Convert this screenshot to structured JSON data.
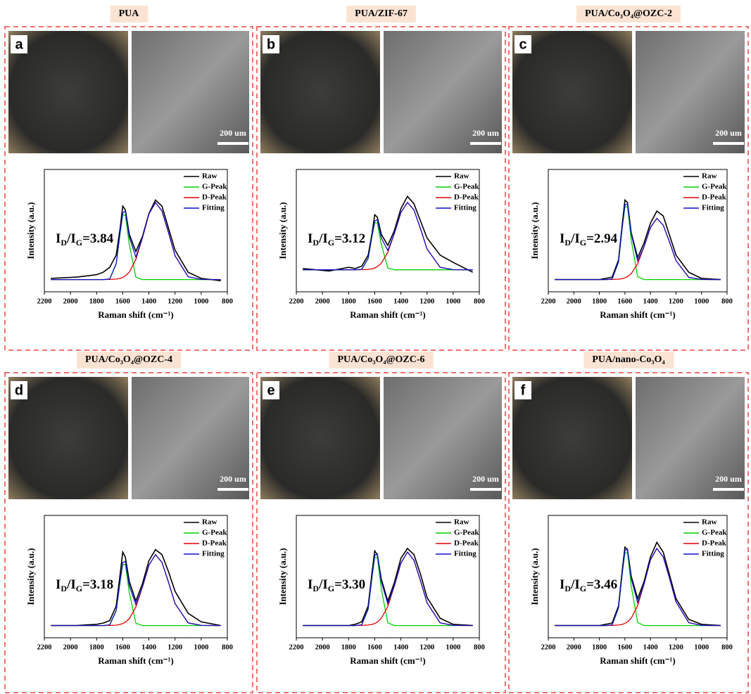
{
  "chart_data": [
    {
      "type": "line",
      "panel": "a",
      "title": "PUA",
      "scale_bar": "200 um",
      "x_label": "Raman shift (cm⁻¹)",
      "y_label": "Intensity (a.u.)",
      "annotation": [
        "I",
        "D",
        "/I",
        "G",
        "=3.84"
      ],
      "xlim": [
        2200,
        800
      ],
      "xticks": [
        2200,
        2000,
        1800,
        1600,
        1400,
        1200,
        1000,
        800
      ],
      "ylim": [
        0,
        100
      ],
      "x": [
        2150,
        1950,
        1800,
        1750,
        1700,
        1650,
        1620,
        1600,
        1580,
        1550,
        1500,
        1450,
        1400,
        1350,
        1300,
        1250,
        1200,
        1100,
        1000,
        850
      ],
      "series": [
        {
          "name": "Raw",
          "color": "#000000",
          "values": [
            11,
            12,
            14,
            16,
            20,
            30,
            52,
            70,
            67,
            47,
            33,
            45,
            64,
            75,
            70,
            52,
            34,
            16,
            11,
            9
          ]
        },
        {
          "name": "G-Peak",
          "color": "#00d000",
          "values": [
            10,
            10,
            10,
            10,
            10.4,
            22.7,
            48,
            62.8,
            62.8,
            38.6,
            12,
            10,
            10,
            10,
            10,
            10,
            10,
            10,
            10,
            10
          ]
        },
        {
          "name": "D-Peak",
          "color": "#e00000",
          "values": [
            10,
            10,
            10,
            10,
            10.1,
            10.4,
            10.9,
            11.7,
            13,
            16.1,
            26.4,
            44,
            63.6,
            73,
            66.1,
            48.4,
            29.5,
            12.3,
            10.1,
            10
          ]
        },
        {
          "name": "Fitting",
          "color": "#1010c8",
          "values": [
            10,
            10,
            10,
            10,
            10.5,
            23.1,
            48.9,
            64.5,
            65.8,
            44.7,
            28.4,
            44,
            63.6,
            73,
            66.1,
            48.4,
            29.5,
            12.3,
            10.1,
            10
          ]
        }
      ]
    },
    {
      "type": "line",
      "panel": "b",
      "title": "PUA/ZIF-67",
      "scale_bar": "200 um",
      "x_label": "Raman shift (cm⁻¹)",
      "y_label": "Intensity (a.u.)",
      "annotation": [
        "I",
        "D",
        "/I",
        "G",
        "=3.12"
      ],
      "xlim": [
        2200,
        800
      ],
      "xticks": [
        2200,
        2000,
        1800,
        1600,
        1400,
        1200,
        1000,
        800
      ],
      "ylim": [
        0,
        100
      ],
      "x": [
        2150,
        1950,
        1800,
        1750,
        1700,
        1650,
        1620,
        1600,
        1580,
        1550,
        1500,
        1450,
        1400,
        1350,
        1300,
        1250,
        1200,
        1100,
        1000,
        850
      ],
      "series": [
        {
          "name": "Raw",
          "color": "#000000",
          "values": [
            19,
            17,
            20,
            19,
            21,
            30,
            48,
            63,
            61,
            47,
            38,
            50,
            68,
            78,
            72,
            58,
            44,
            30,
            24,
            16
          ]
        },
        {
          "name": "G-Peak",
          "color": "#00d000",
          "values": [
            18,
            18,
            18,
            18,
            18.3,
            27.2,
            45.6,
            56.4,
            56.4,
            38.8,
            19.5,
            18,
            18,
            18,
            18,
            18,
            18,
            18,
            18,
            18
          ]
        },
        {
          "name": "D-Peak",
          "color": "#e00000",
          "values": [
            18,
            18,
            18,
            18,
            18.1,
            18.3,
            18.8,
            19.5,
            20.6,
            23.3,
            32.3,
            47.7,
            64.8,
            73,
            67,
            51.6,
            35,
            20,
            18.1,
            18
          ]
        },
        {
          "name": "Fitting",
          "color": "#1010c8",
          "values": [
            18,
            18,
            18,
            18,
            18.4,
            27.5,
            46.4,
            57.9,
            59,
            44.1,
            33.8,
            47.7,
            64.8,
            73,
            67,
            51.6,
            35,
            20,
            18.1,
            18
          ]
        }
      ]
    },
    {
      "type": "line",
      "panel": "c",
      "title": "PUA/Co₃O₄@OZC-2",
      "scale_bar": "200 um",
      "x_label": "Raman shift (cm⁻¹)",
      "y_label": "Intensity (a.u.)",
      "annotation": [
        "I",
        "D",
        "/I",
        "G",
        "=2.94"
      ],
      "xlim": [
        2200,
        800
      ],
      "xticks": [
        2200,
        2000,
        1800,
        1600,
        1400,
        1200,
        1000,
        800
      ],
      "ylim": [
        0,
        100
      ],
      "x": [
        2150,
        1950,
        1800,
        1750,
        1700,
        1650,
        1620,
        1600,
        1580,
        1550,
        1500,
        1450,
        1400,
        1350,
        1300,
        1250,
        1200,
        1100,
        1000,
        850
      ],
      "series": [
        {
          "name": "Raw",
          "color": "#000000",
          "values": [
            10,
            10,
            10,
            11,
            12,
            26,
            56,
            75,
            73,
            48,
            28,
            40,
            56,
            66,
            62,
            46,
            30,
            16,
            11,
            10
          ]
        },
        {
          "name": "G-Peak",
          "color": "#00d000",
          "values": [
            10,
            10,
            10,
            10,
            10.4,
            24.3,
            52.8,
            69.5,
            69.5,
            42.2,
            12.3,
            10,
            10,
            10,
            10,
            10,
            10,
            10,
            10,
            10
          ]
        },
        {
          "name": "D-Peak",
          "color": "#e00000",
          "values": [
            10,
            10,
            10,
            10,
            10.1,
            10.3,
            10.8,
            11.4,
            12.4,
            14.9,
            23,
            37,
            52.5,
            60,
            54.5,
            40.5,
            25.5,
            11.8,
            10.1,
            10
          ]
        },
        {
          "name": "Fitting",
          "color": "#1010c8",
          "values": [
            10,
            10,
            10,
            10,
            10.5,
            24.6,
            53.6,
            70.9,
            71.9,
            47.1,
            25.3,
            37,
            52.5,
            60,
            54.5,
            40.5,
            25.5,
            11.8,
            10.1,
            10
          ]
        }
      ]
    },
    {
      "type": "line",
      "panel": "d",
      "title": "PUA/Co₃O₄@OZC-4",
      "scale_bar": "200 um",
      "x_label": "Raman shift (cm⁻¹)",
      "y_label": "Intensity (a.u.)",
      "annotation": [
        "I",
        "D",
        "/I",
        "G",
        "=3.18"
      ],
      "xlim": [
        2200,
        800
      ],
      "xticks": [
        2200,
        2000,
        1800,
        1600,
        1400,
        1200,
        1000,
        800
      ],
      "ylim": [
        0,
        100
      ],
      "x": [
        2150,
        1950,
        1800,
        1750,
        1700,
        1650,
        1620,
        1600,
        1580,
        1550,
        1500,
        1450,
        1400,
        1350,
        1300,
        1250,
        1200,
        1100,
        1000,
        850
      ],
      "series": [
        {
          "name": "Raw",
          "color": "#000000",
          "values": [
            10,
            10,
            11,
            12,
            14,
            26,
            52,
            70,
            66,
            46,
            30,
            44,
            63,
            72,
            68,
            54,
            38,
            20,
            13,
            10
          ]
        },
        {
          "name": "G-Peak",
          "color": "#00d000",
          "values": [
            10,
            10,
            10,
            10,
            10.4,
            22,
            45.9,
            59.9,
            59.9,
            37,
            11.9,
            10,
            10,
            10,
            10,
            10,
            10,
            10,
            10,
            10
          ]
        },
        {
          "name": "D-Peak",
          "color": "#e00000",
          "values": [
            10,
            10,
            10,
            10,
            10.1,
            10.3,
            10.9,
            11.6,
            12.7,
            15.6,
            25.1,
            41.3,
            59.3,
            68,
            61.6,
            45.4,
            28,
            12.1,
            10.1,
            10
          ]
        },
        {
          "name": "Fitting",
          "color": "#1010c8",
          "values": [
            10,
            10,
            10,
            10,
            10.5,
            22.3,
            46.8,
            61.5,
            62.6,
            42.6,
            27,
            41.3,
            59.3,
            68,
            61.6,
            45.4,
            28,
            12.1,
            10.1,
            10
          ]
        }
      ]
    },
    {
      "type": "line",
      "panel": "e",
      "title": "PUA/Co₃O₄@OZC-6",
      "scale_bar": "200 um",
      "x_label": "Raman shift (cm⁻¹)",
      "y_label": "Intensity (a.u.)",
      "annotation": [
        "I",
        "D",
        "/I",
        "G",
        "=3.30"
      ],
      "xlim": [
        2200,
        800
      ],
      "xticks": [
        2200,
        2000,
        1800,
        1600,
        1400,
        1200,
        1000,
        800
      ],
      "ylim": [
        0,
        100
      ],
      "x": [
        2150,
        1950,
        1800,
        1750,
        1700,
        1650,
        1620,
        1600,
        1580,
        1550,
        1500,
        1450,
        1400,
        1350,
        1300,
        1250,
        1200,
        1100,
        1000,
        850
      ],
      "series": [
        {
          "name": "Raw",
          "color": "#000000",
          "values": [
            10,
            10,
            10,
            11,
            13,
            26,
            54,
            71,
            68,
            48,
            30,
            45,
            65,
            73,
            68,
            52,
            33,
            16,
            11,
            10
          ]
        },
        {
          "name": "G-Peak",
          "color": "#00d000",
          "values": [
            10,
            10,
            10,
            10,
            10.4,
            23.3,
            50,
            65.7,
            65.7,
            40.2,
            12.1,
            10,
            10,
            10,
            10,
            10,
            10,
            10,
            10,
            10
          ]
        },
        {
          "name": "D-Peak",
          "color": "#e00000",
          "values": [
            10,
            10,
            10,
            10,
            10.1,
            10.4,
            10.9,
            11.6,
            12.8,
            15.8,
            25.6,
            42.4,
            61,
            70,
            63.4,
            46.6,
            28.6,
            12.2,
            10.1,
            10
          ]
        },
        {
          "name": "Fitting",
          "color": "#1010c8",
          "values": [
            10,
            10,
            10,
            10,
            10.5,
            23.7,
            50.9,
            67.3,
            68.5,
            46,
            27.7,
            42.4,
            61,
            70,
            63.4,
            46.6,
            28.6,
            12.2,
            10.1,
            10
          ]
        }
      ]
    },
    {
      "type": "line",
      "panel": "f",
      "title": "PUA/nano-Co₃O₄",
      "scale_bar": "200 um",
      "x_label": "Raman shift (cm⁻¹)",
      "y_label": "Intensity (a.u.)",
      "annotation": [
        "I",
        "D",
        "/I",
        "G",
        "=3.46"
      ],
      "xlim": [
        2200,
        800
      ],
      "xticks": [
        2200,
        2000,
        1800,
        1600,
        1400,
        1200,
        1000,
        800
      ],
      "ylim": [
        0,
        100
      ],
      "x": [
        2150,
        1950,
        1800,
        1750,
        1700,
        1650,
        1620,
        1600,
        1580,
        1550,
        1500,
        1450,
        1400,
        1350,
        1300,
        1250,
        1200,
        1100,
        1000,
        850
      ],
      "series": [
        {
          "name": "Raw",
          "color": "#000000",
          "values": [
            10,
            10,
            10,
            11,
            12,
            26,
            56,
            74,
            72,
            50,
            32,
            46,
            66,
            78,
            70,
            51,
            32,
            15,
            11,
            10
          ]
        },
        {
          "name": "G-Peak",
          "color": "#00d000",
          "values": [
            10,
            10,
            10,
            10,
            10.4,
            24.3,
            52.8,
            69.5,
            69.5,
            42.2,
            12.3,
            10,
            10,
            10,
            10,
            10,
            10,
            10,
            10,
            10
          ]
        },
        {
          "name": "D-Peak",
          "color": "#e00000",
          "values": [
            10,
            10,
            10,
            10,
            10.1,
            10.4,
            10.9,
            11.7,
            13,
            16.1,
            26.4,
            44,
            63.6,
            73,
            66.1,
            48.4,
            29.5,
            12.3,
            10.1,
            10
          ]
        },
        {
          "name": "Fitting",
          "color": "#1010c8",
          "values": [
            10,
            10,
            10,
            10,
            10.5,
            24.7,
            53.7,
            71.2,
            72.5,
            48.3,
            28.7,
            44,
            63.6,
            73,
            66.1,
            48.4,
            29.5,
            12.3,
            10.1,
            10
          ]
        }
      ]
    }
  ]
}
